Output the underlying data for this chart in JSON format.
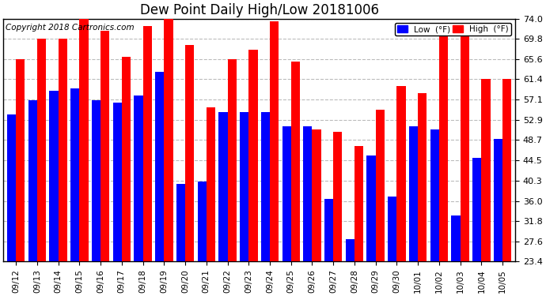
{
  "title": "Dew Point Daily High/Low 20181006",
  "copyright": "Copyright 2018 Cartronics.com",
  "dates": [
    "09/12",
    "09/13",
    "09/14",
    "09/15",
    "09/16",
    "09/17",
    "09/18",
    "09/19",
    "09/20",
    "09/21",
    "09/22",
    "09/23",
    "09/24",
    "09/25",
    "09/26",
    "09/27",
    "09/28",
    "09/29",
    "09/30",
    "10/01",
    "10/02",
    "10/03",
    "10/04",
    "10/05"
  ],
  "low_values": [
    54.0,
    57.0,
    59.0,
    59.5,
    57.0,
    56.5,
    58.0,
    63.0,
    39.5,
    40.0,
    54.5,
    54.5,
    54.5,
    51.5,
    51.5,
    36.5,
    28.0,
    45.5,
    37.0,
    51.5,
    51.0,
    33.0,
    45.0,
    49.0
  ],
  "high_values": [
    65.5,
    69.8,
    69.8,
    74.5,
    71.5,
    66.0,
    72.5,
    74.0,
    68.5,
    55.5,
    65.5,
    67.5,
    73.5,
    65.0,
    51.0,
    50.5,
    47.5,
    55.0,
    60.0,
    58.5,
    71.0,
    70.5,
    61.5,
    61.5
  ],
  "low_color": "#0000ff",
  "high_color": "#ff0000",
  "bg_color": "#ffffff",
  "grid_color": "#bbbbbb",
  "ylim_min": 23.4,
  "ylim_max": 74.0,
  "yticks": [
    23.4,
    27.6,
    31.8,
    36.0,
    40.3,
    44.5,
    48.7,
    52.9,
    57.1,
    61.4,
    65.6,
    69.8,
    74.0
  ],
  "title_fontsize": 12,
  "copyright_fontsize": 7.5,
  "bar_width": 0.42,
  "legend_low_label": "Low  (°F)",
  "legend_high_label": "High  (°F)"
}
